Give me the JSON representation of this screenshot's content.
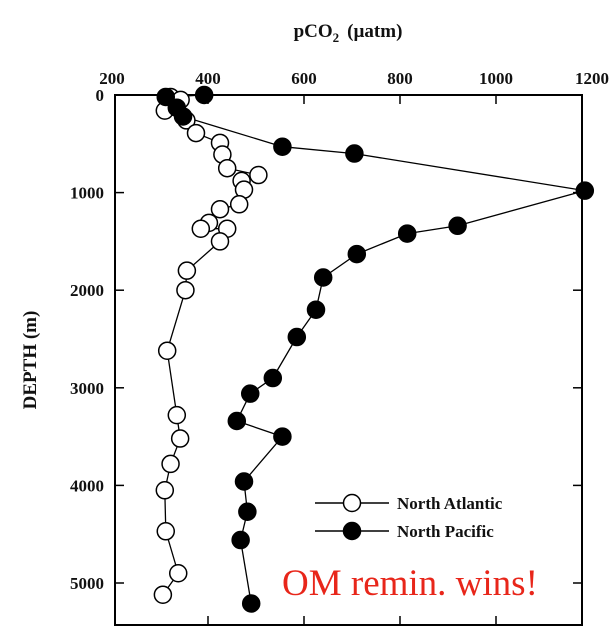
{
  "chart_data": {
    "type": "scatter",
    "title": "",
    "xlabel": "pCO",
    "xlabel_sub": "2",
    "xlabel_unit": "(µatm)",
    "ylabel": "DEPTH (m)",
    "xlim": [
      200,
      1200
    ],
    "ylim": [
      0,
      5200
    ],
    "x_ticks": [
      "200",
      "400",
      "600",
      "800",
      "1000",
      "1200"
    ],
    "y_ticks": [
      "0",
      "1000",
      "2000",
      "3000",
      "4000",
      "5000"
    ],
    "x_axis_position": "top",
    "y_axis_reversed": true,
    "grid": false,
    "legend_position": "bottom-right",
    "series": [
      {
        "name": "North Atlantic",
        "marker": "open-circle",
        "color": "#000000",
        "points": [
          {
            "x": 322,
            "y": 20
          },
          {
            "x": 343,
            "y": 50
          },
          {
            "x": 310,
            "y": 160
          },
          {
            "x": 355,
            "y": 260
          },
          {
            "x": 375,
            "y": 390
          },
          {
            "x": 425,
            "y": 490
          },
          {
            "x": 430,
            "y": 610
          },
          {
            "x": 440,
            "y": 750
          },
          {
            "x": 505,
            "y": 820
          },
          {
            "x": 470,
            "y": 880
          },
          {
            "x": 475,
            "y": 970
          },
          {
            "x": 465,
            "y": 1120
          },
          {
            "x": 425,
            "y": 1170
          },
          {
            "x": 402,
            "y": 1310
          },
          {
            "x": 385,
            "y": 1370
          },
          {
            "x": 440,
            "y": 1370
          },
          {
            "x": 425,
            "y": 1500
          },
          {
            "x": 356,
            "y": 1800
          },
          {
            "x": 353,
            "y": 2000
          },
          {
            "x": 315,
            "y": 2620
          },
          {
            "x": 335,
            "y": 3280
          },
          {
            "x": 342,
            "y": 3520
          },
          {
            "x": 322,
            "y": 3780
          },
          {
            "x": 310,
            "y": 4050
          },
          {
            "x": 312,
            "y": 4470
          },
          {
            "x": 338,
            "y": 4900
          },
          {
            "x": 306,
            "y": 5120
          }
        ]
      },
      {
        "name": "North Pacific",
        "marker": "filled-circle",
        "color": "#000000",
        "points": [
          {
            "x": 392,
            "y": 0
          },
          {
            "x": 312,
            "y": 20
          },
          {
            "x": 335,
            "y": 130
          },
          {
            "x": 348,
            "y": 220
          },
          {
            "x": 555,
            "y": 530
          },
          {
            "x": 705,
            "y": 600
          },
          {
            "x": 1185,
            "y": 980
          },
          {
            "x": 920,
            "y": 1340
          },
          {
            "x": 815,
            "y": 1420
          },
          {
            "x": 710,
            "y": 1630
          },
          {
            "x": 640,
            "y": 1870
          },
          {
            "x": 625,
            "y": 2200
          },
          {
            "x": 585,
            "y": 2480
          },
          {
            "x": 535,
            "y": 2900
          },
          {
            "x": 488,
            "y": 3060
          },
          {
            "x": 460,
            "y": 3340
          },
          {
            "x": 555,
            "y": 3500
          },
          {
            "x": 475,
            "y": 3960
          },
          {
            "x": 482,
            "y": 4270
          },
          {
            "x": 468,
            "y": 4560
          },
          {
            "x": 490,
            "y": 5210
          }
        ]
      }
    ],
    "legend": [
      {
        "label": "North Atlantic",
        "marker": "open-circle"
      },
      {
        "label": "North Pacific",
        "marker": "filled-circle"
      }
    ],
    "annotation": {
      "text": "OM remin. wins!",
      "color": "#e8261a"
    }
  }
}
